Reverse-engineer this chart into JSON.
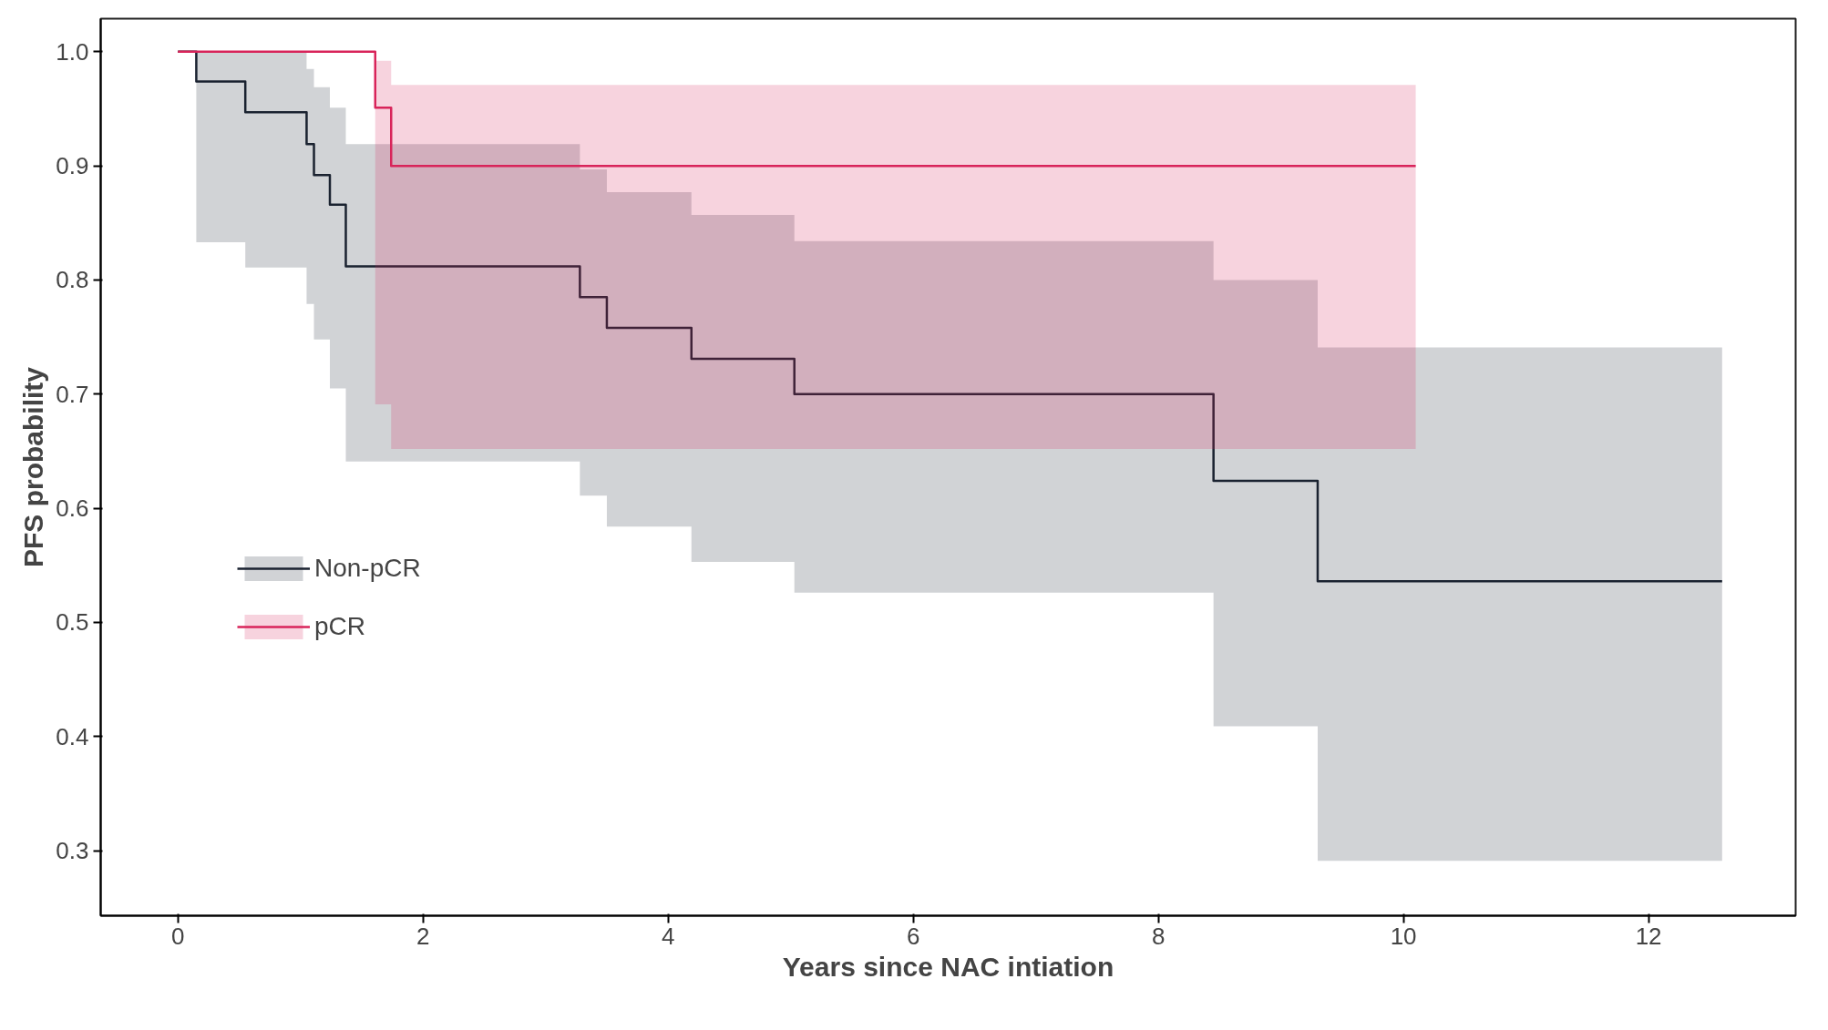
{
  "chart_data": {
    "type": "step",
    "xlabel": "Years since NAC intiation",
    "ylabel": "PFS probability",
    "xlim": [
      -0.63,
      13.2
    ],
    "ylim": [
      0.243,
      1.029
    ],
    "xticks": [
      0,
      2,
      4,
      6,
      8,
      10,
      12
    ],
    "yticks": [
      0.3,
      0.4,
      0.5,
      0.6,
      0.7,
      0.8,
      0.9,
      {
        "value": 1,
        "label": "1.0"
      }
    ],
    "legend": "left",
    "grid": false,
    "series": [
      {
        "name": "Non-pCR",
        "color": "#1a2230",
        "x": [
          0,
          0.15,
          0.55,
          1.05,
          1.11,
          1.24,
          1.37,
          3.28,
          3.5,
          4.19,
          5.03,
          8.45,
          9.3,
          12.6
        ],
        "values": [
          1.0,
          0.974,
          0.947,
          0.919,
          0.892,
          0.866,
          0.812,
          0.785,
          0.758,
          0.731,
          0.7,
          0.624,
          0.536,
          0.536
        ],
        "upper": [
          1.0,
          1.0,
          1.0,
          0.985,
          0.969,
          0.951,
          0.919,
          0.897,
          0.877,
          0.857,
          0.834,
          0.8,
          0.741,
          0.741
        ],
        "lower": [
          1.0,
          0.833,
          0.811,
          0.779,
          0.748,
          0.705,
          0.641,
          0.611,
          0.584,
          0.553,
          0.526,
          0.409,
          0.291,
          0.291
        ]
      },
      {
        "name": "pCR",
        "color": "#d8245a",
        "x": [
          0,
          1.61,
          1.74,
          10.1
        ],
        "values": [
          1.0,
          0.951,
          0.9,
          0.9
        ],
        "upper": [
          1.0,
          0.992,
          0.971,
          0.971
        ],
        "lower": [
          1.0,
          0.691,
          0.652,
          0.652
        ]
      }
    ]
  }
}
